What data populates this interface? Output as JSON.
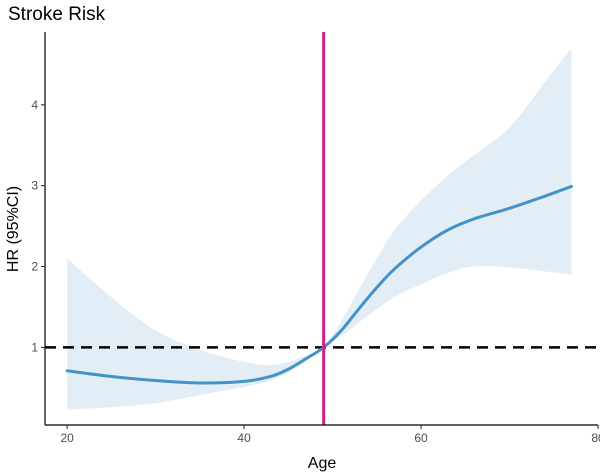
{
  "chart_data": {
    "type": "line",
    "title": "Stroke Risk",
    "xlabel": "Age",
    "ylabel": "HR (95%CI)",
    "xlim": [
      17.5,
      80
    ],
    "ylim": [
      0.04,
      4.9
    ],
    "x_ticks": [
      20,
      40,
      60,
      80
    ],
    "y_ticks": [
      1,
      2,
      3,
      4
    ],
    "grid": false,
    "legend": "none",
    "series": [
      {
        "x": [
          20,
          25,
          30,
          35,
          40,
          43,
          45,
          47,
          49,
          51,
          53,
          55,
          57,
          60,
          63,
          66,
          70,
          74,
          77
        ],
        "y": [
          0.71,
          0.64,
          0.59,
          0.56,
          0.58,
          0.64,
          0.73,
          0.86,
          1.0,
          1.21,
          1.48,
          1.74,
          1.97,
          2.24,
          2.45,
          2.59,
          2.72,
          2.87,
          2.99
        ],
        "ci_lower": [
          0.23,
          0.26,
          0.31,
          0.41,
          0.51,
          0.59,
          0.69,
          0.83,
          1.0,
          1.14,
          1.31,
          1.47,
          1.62,
          1.78,
          1.92,
          2.0,
          1.99,
          1.94,
          1.9
        ],
        "ci_upper": [
          2.1,
          1.62,
          1.21,
          0.97,
          0.82,
          0.78,
          0.82,
          0.9,
          1.0,
          1.33,
          1.72,
          2.1,
          2.45,
          2.82,
          3.12,
          3.38,
          3.72,
          4.28,
          4.7
        ]
      }
    ],
    "reference_lines": [
      {
        "orientation": "horizontal",
        "value": 1,
        "style": "dashed",
        "color": "#000000"
      },
      {
        "orientation": "vertical",
        "value": 49,
        "style": "solid",
        "color": "#CC1F8D"
      }
    ],
    "colors": {
      "line": "#4393C8",
      "band": "#E3EDF6",
      "axis": "#000000"
    }
  }
}
